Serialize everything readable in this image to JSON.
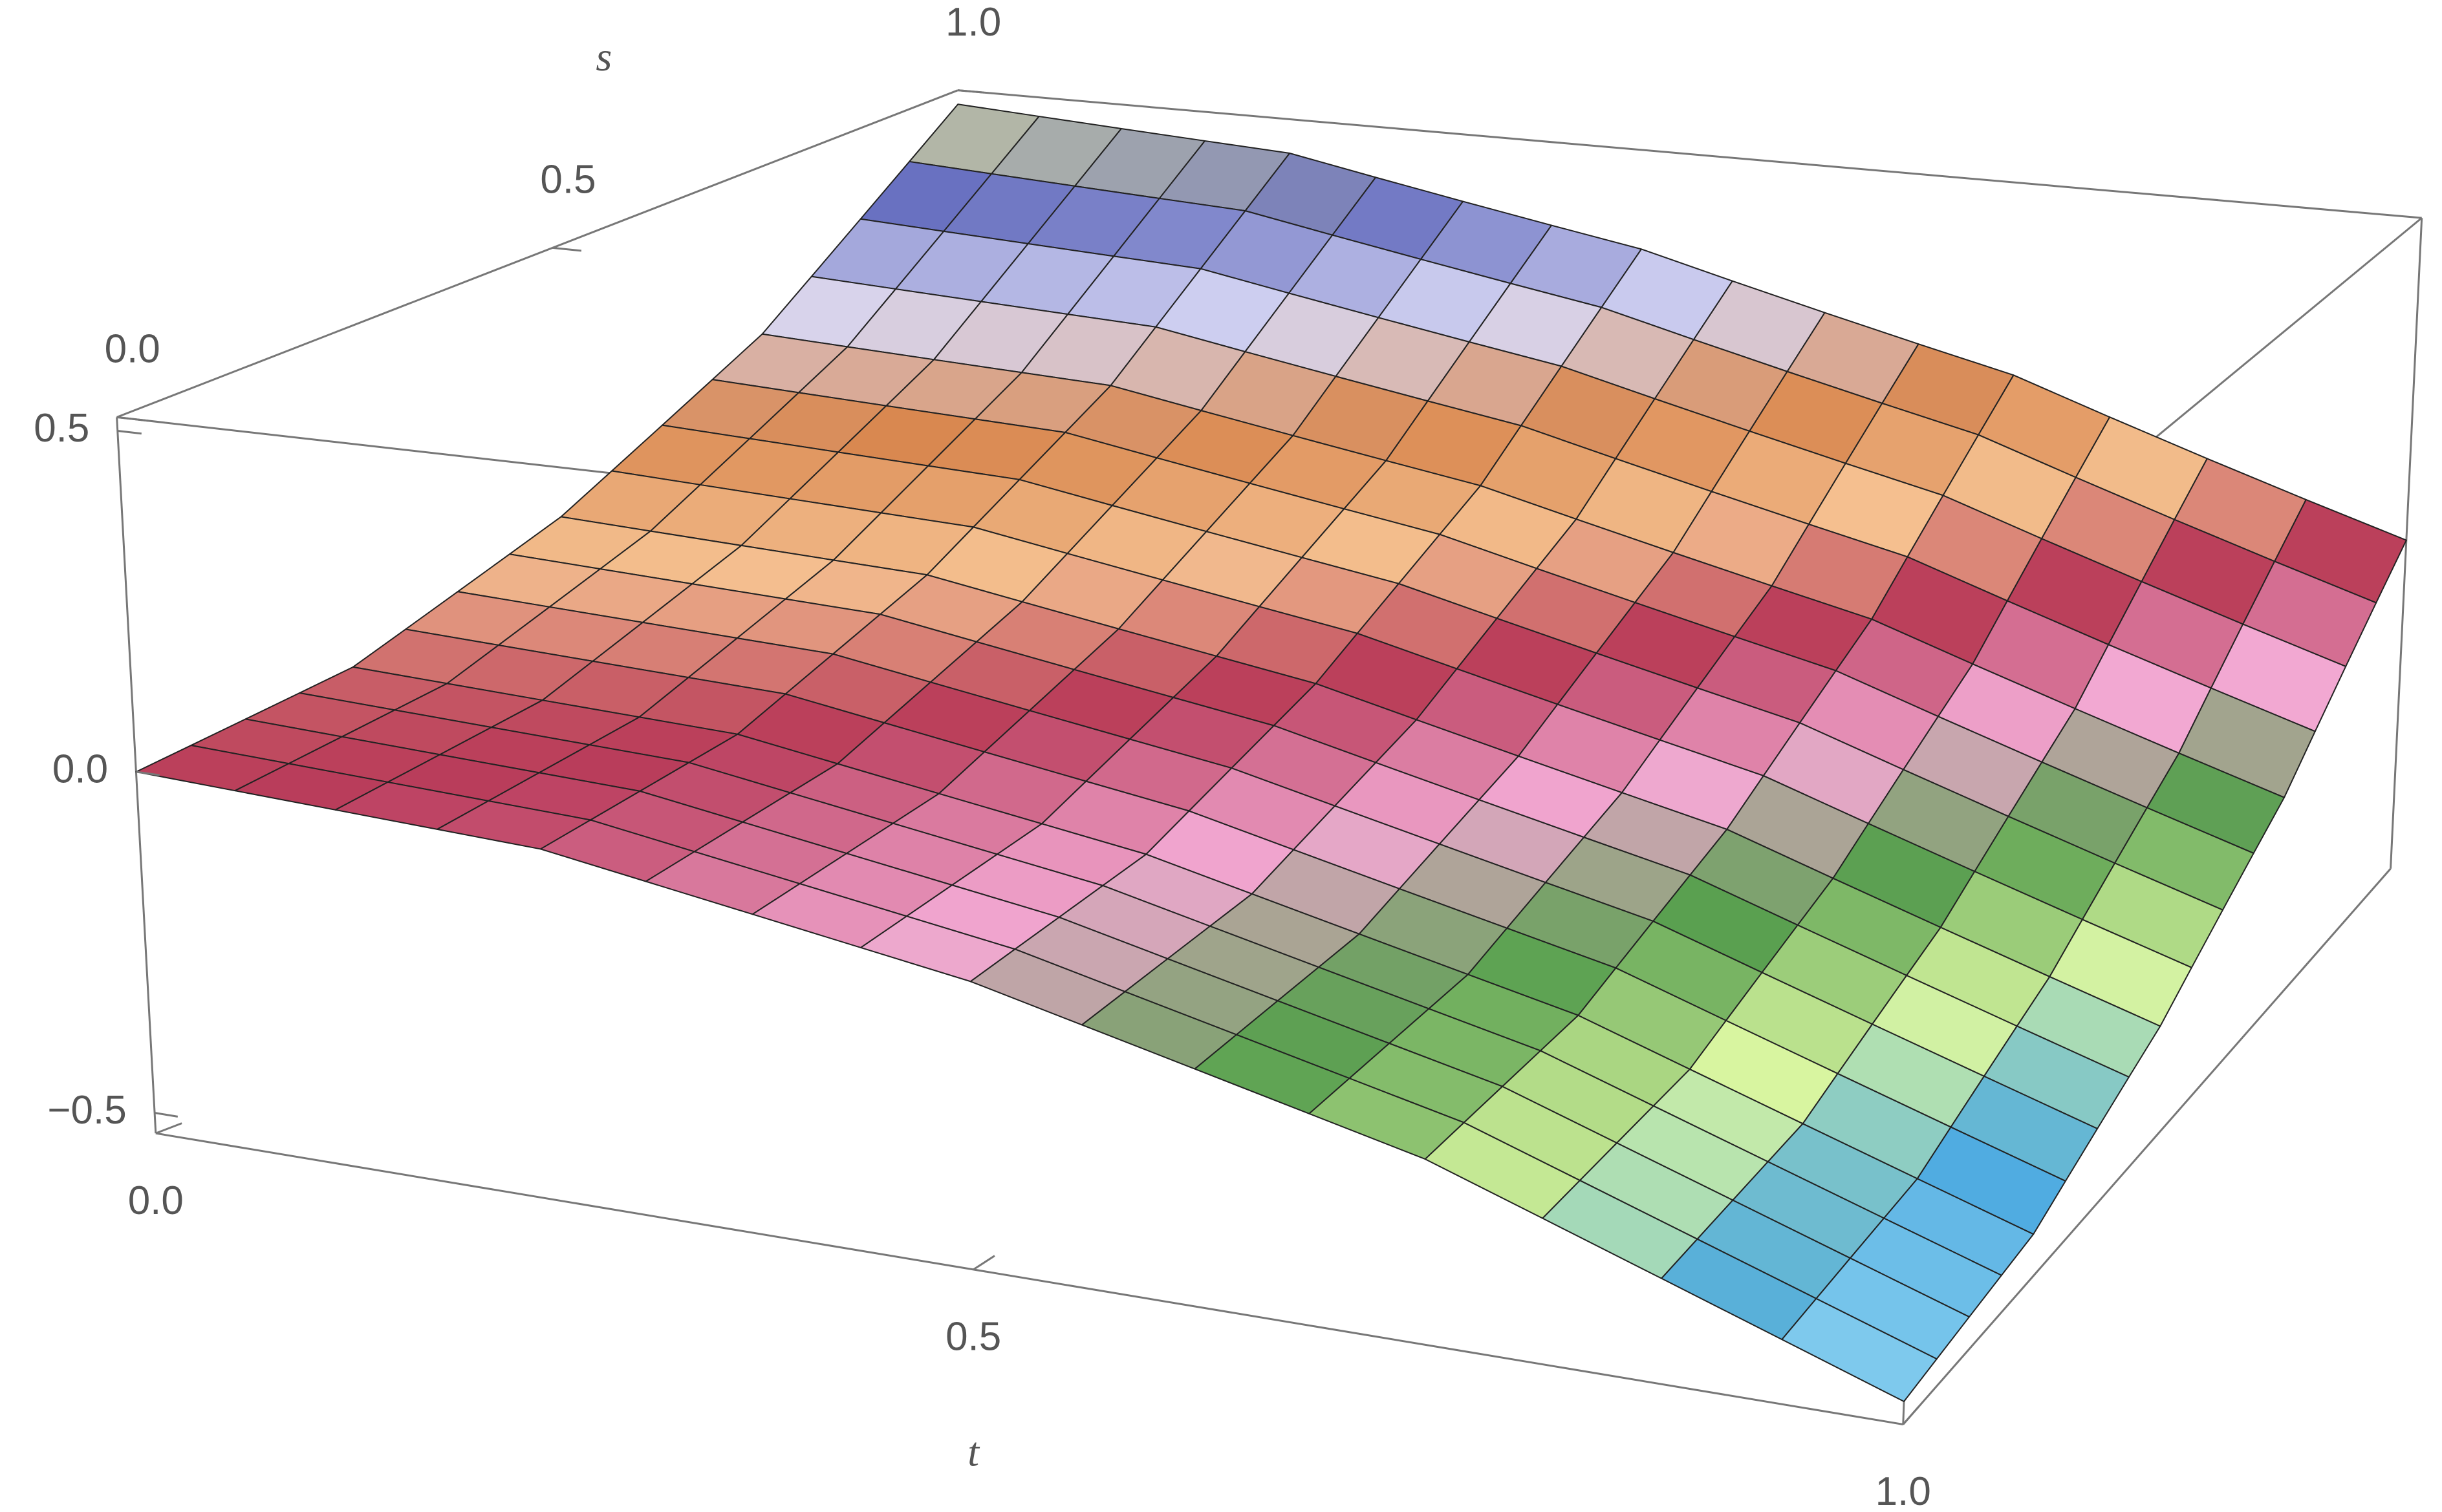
{
  "chart_data": {
    "type": "surface3d",
    "xlabel": "t",
    "ylabel": "s",
    "x": [
      0,
      0.25,
      0.5,
      0.75,
      1
    ],
    "y": [
      0,
      0.25,
      0.5,
      0.75,
      1
    ],
    "z": [
      [
        0,
        -0.03,
        -0.13,
        -0.28,
        -0.5
      ],
      [
        0.03,
        0,
        -0.1,
        -0.25,
        -0.47
      ],
      [
        0.13,
        0.1,
        0,
        -0.15,
        -0.37
      ],
      [
        0.28,
        0.25,
        0.15,
        0,
        -0.22
      ],
      [
        0.5,
        0.47,
        0.37,
        0.22,
        0
      ]
    ],
    "xlim": [
      0,
      1
    ],
    "ylim": [
      0,
      1
    ],
    "zlim": [
      -0.53,
      0.52
    ],
    "xticks": [
      {
        "value": 0,
        "label": "0.0"
      },
      0.5,
      {
        "value": 1,
        "label": "1.0"
      }
    ],
    "yticks": [
      {
        "value": 0,
        "label": "0.0"
      },
      0.5,
      {
        "value": 1,
        "label": "1.0"
      }
    ],
    "zticks": [
      {
        "value": -0.5,
        "label": "−0.5"
      },
      {
        "value": 0,
        "label": "0.0"
      },
      0.5
    ],
    "colors": [
      "#c8f8ff",
      "#4aa8e0",
      "#d8f5a0",
      "#5aa050",
      "#f2a8d2",
      "#b83a58",
      "#f5c090",
      "#d98850",
      "#d8d8f5",
      "#6870c0",
      "#f8f890"
    ],
    "mesh_color": "#222222",
    "box_color": "#777777"
  }
}
